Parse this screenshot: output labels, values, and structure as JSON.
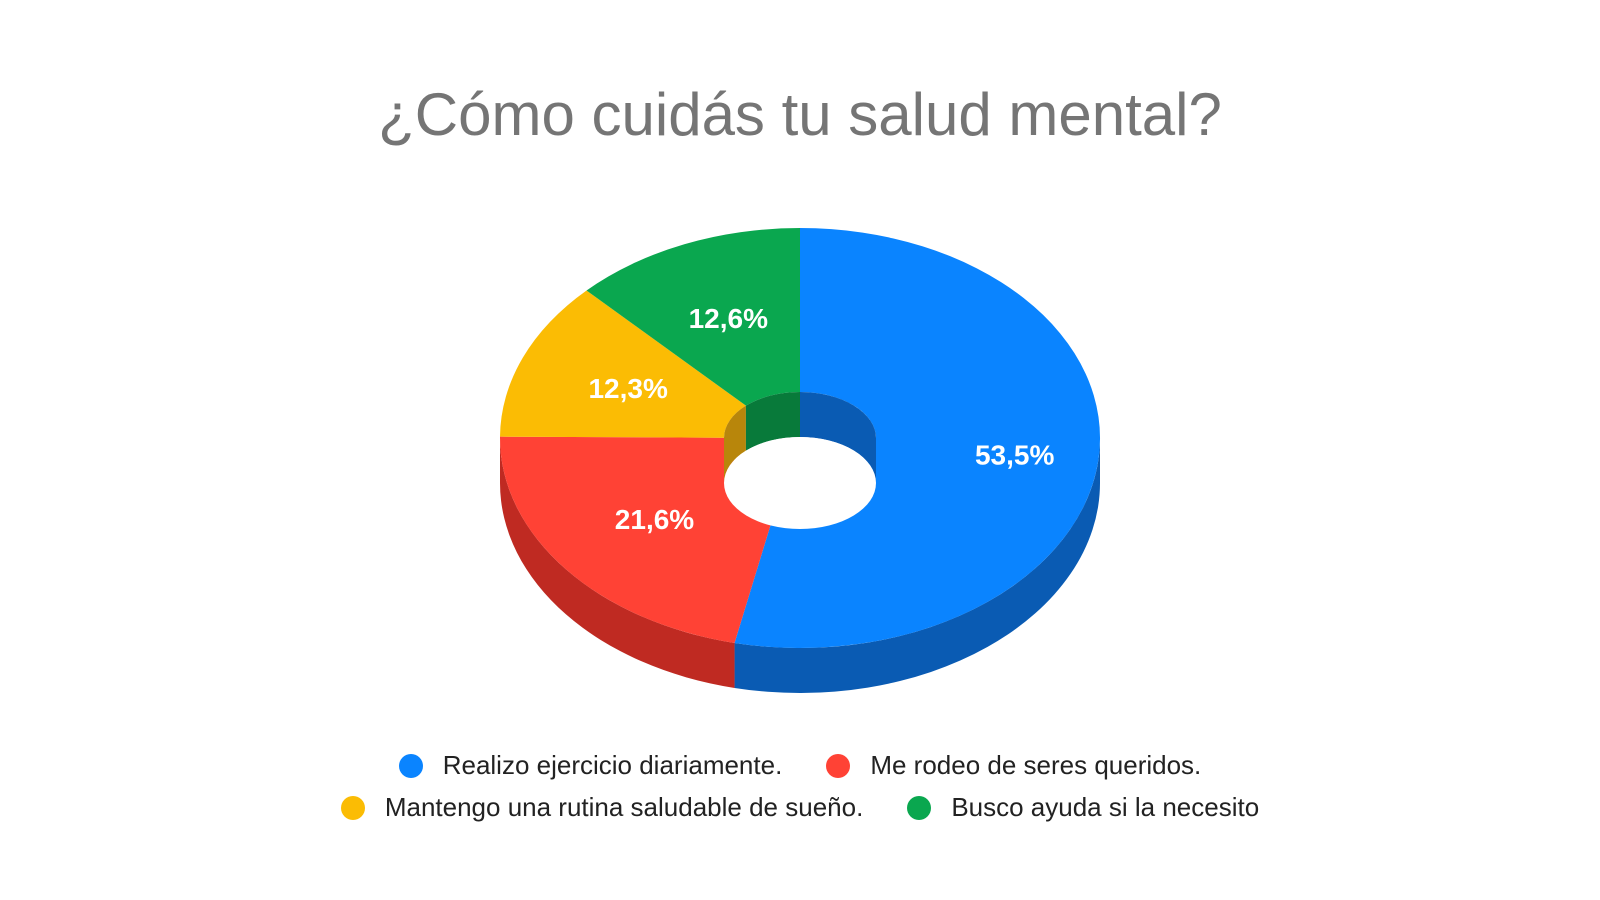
{
  "chart_data": {
    "type": "pie",
    "variant": "3d-donut",
    "title": "¿Cómo cuidás tu salud mental?",
    "slices": [
      {
        "label": "Realizo ejercicio diariamente.",
        "value": 53.5,
        "display": "53,5%",
        "color": "#0a84ff",
        "side_color": "#0a5bb3"
      },
      {
        "label": "Me rodeo de seres queridos.",
        "value": 21.6,
        "display": "21,6%",
        "color": "#ff4235",
        "side_color": "#bf2a22"
      },
      {
        "label": "Mantengo una rutina saludable de sueño.",
        "value": 12.3,
        "display": "12,3%",
        "color": "#fbbc04",
        "side_color": "#b8860b"
      },
      {
        "label": "Busco ayuda si la necesito",
        "value": 12.6,
        "display": "12,6%",
        "color": "#0aa74f",
        "side_color": "#087a3a"
      }
    ],
    "legend": {
      "position": "bottom"
    }
  }
}
